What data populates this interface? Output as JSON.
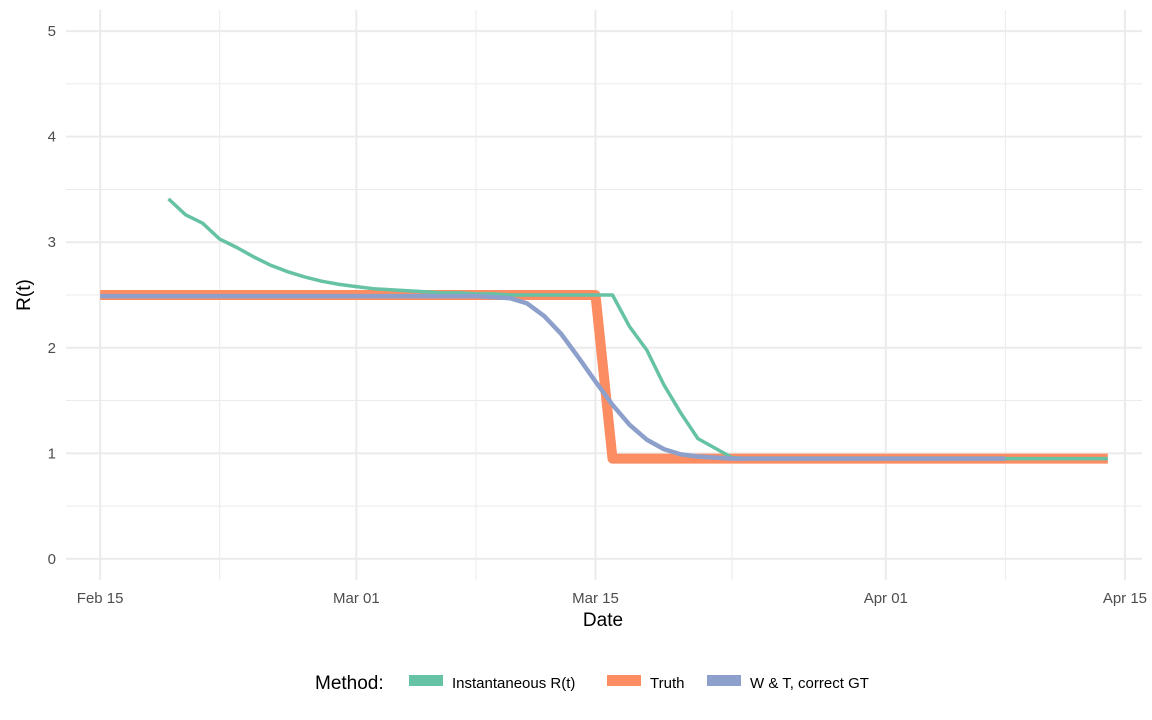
{
  "chart_data": {
    "type": "line",
    "xlabel": "Date",
    "ylabel": "R(t)",
    "xlim": [
      "2020-02-13",
      "2020-04-16"
    ],
    "ylim": [
      -0.2,
      5.2
    ],
    "x_ticks": [
      {
        "date": "2020-02-15",
        "label": "Feb 15"
      },
      {
        "date": "2020-03-01",
        "label": "Mar 01"
      },
      {
        "date": "2020-03-15",
        "label": "Mar 15"
      },
      {
        "date": "2020-04-01",
        "label": "Apr 01"
      },
      {
        "date": "2020-04-15",
        "label": "Apr 15"
      }
    ],
    "x_minor_gridlines": [
      "2020-02-22",
      "2020-03-08",
      "2020-03-23",
      "2020-04-08"
    ],
    "y_ticks": [
      0,
      1,
      2,
      3,
      4,
      5
    ],
    "y_minor_gridlines": [
      0.5,
      1.5,
      2.5,
      3.5,
      4.5
    ],
    "grid": true,
    "legend": {
      "title": "Method:",
      "position": "bottom"
    },
    "series": [
      {
        "name": "Instantaneous R(t)",
        "color": "#66C2A5",
        "points": [
          [
            "2020-02-19",
            3.41
          ],
          [
            "2020-02-20",
            3.26
          ],
          [
            "2020-02-21",
            3.18
          ],
          [
            "2020-02-22",
            3.03
          ],
          [
            "2020-02-23",
            2.95
          ],
          [
            "2020-02-24",
            2.86
          ],
          [
            "2020-02-25",
            2.78
          ],
          [
            "2020-02-26",
            2.72
          ],
          [
            "2020-02-27",
            2.67
          ],
          [
            "2020-02-28",
            2.63
          ],
          [
            "2020-02-29",
            2.6
          ],
          [
            "2020-03-01",
            2.58
          ],
          [
            "2020-03-02",
            2.56
          ],
          [
            "2020-03-03",
            2.55
          ],
          [
            "2020-03-04",
            2.54
          ],
          [
            "2020-03-05",
            2.53
          ],
          [
            "2020-03-06",
            2.52
          ],
          [
            "2020-03-07",
            2.52
          ],
          [
            "2020-03-08",
            2.51
          ],
          [
            "2020-03-09",
            2.51
          ],
          [
            "2020-03-10",
            2.5
          ],
          [
            "2020-03-11",
            2.5
          ],
          [
            "2020-03-12",
            2.5
          ],
          [
            "2020-03-13",
            2.5
          ],
          [
            "2020-03-14",
            2.5
          ],
          [
            "2020-03-15",
            2.5
          ],
          [
            "2020-03-16",
            2.5
          ],
          [
            "2020-03-17",
            2.2
          ],
          [
            "2020-03-18",
            1.98
          ],
          [
            "2020-03-19",
            1.65
          ],
          [
            "2020-03-20",
            1.38
          ],
          [
            "2020-03-21",
            1.14
          ],
          [
            "2020-03-22",
            1.05
          ],
          [
            "2020-03-23",
            0.96
          ],
          [
            "2020-03-24",
            0.95
          ],
          [
            "2020-03-25",
            0.95
          ],
          [
            "2020-04-01",
            0.95
          ],
          [
            "2020-04-08",
            0.95
          ],
          [
            "2020-04-14",
            0.95
          ]
        ]
      },
      {
        "name": "Truth",
        "color": "#FC8D62",
        "points": [
          [
            "2020-02-15",
            2.5
          ],
          [
            "2020-03-15",
            2.5
          ],
          [
            "2020-03-16",
            0.95
          ],
          [
            "2020-04-14",
            0.95
          ]
        ]
      },
      {
        "name": "W & T, correct GT",
        "color": "#8DA0CB",
        "points": [
          [
            "2020-02-15",
            2.49
          ],
          [
            "2020-03-01",
            2.49
          ],
          [
            "2020-03-06",
            2.49
          ],
          [
            "2020-03-08",
            2.49
          ],
          [
            "2020-03-09",
            2.48
          ],
          [
            "2020-03-10",
            2.47
          ],
          [
            "2020-03-11",
            2.42
          ],
          [
            "2020-03-12",
            2.3
          ],
          [
            "2020-03-13",
            2.13
          ],
          [
            "2020-03-14",
            1.91
          ],
          [
            "2020-03-15",
            1.68
          ],
          [
            "2020-03-16",
            1.46
          ],
          [
            "2020-03-17",
            1.27
          ],
          [
            "2020-03-18",
            1.13
          ],
          [
            "2020-03-19",
            1.04
          ],
          [
            "2020-03-20",
            0.99
          ],
          [
            "2020-03-21",
            0.97
          ],
          [
            "2020-03-22",
            0.96
          ],
          [
            "2020-03-23",
            0.95
          ],
          [
            "2020-04-01",
            0.95
          ],
          [
            "2020-04-08",
            0.95
          ]
        ]
      }
    ]
  }
}
